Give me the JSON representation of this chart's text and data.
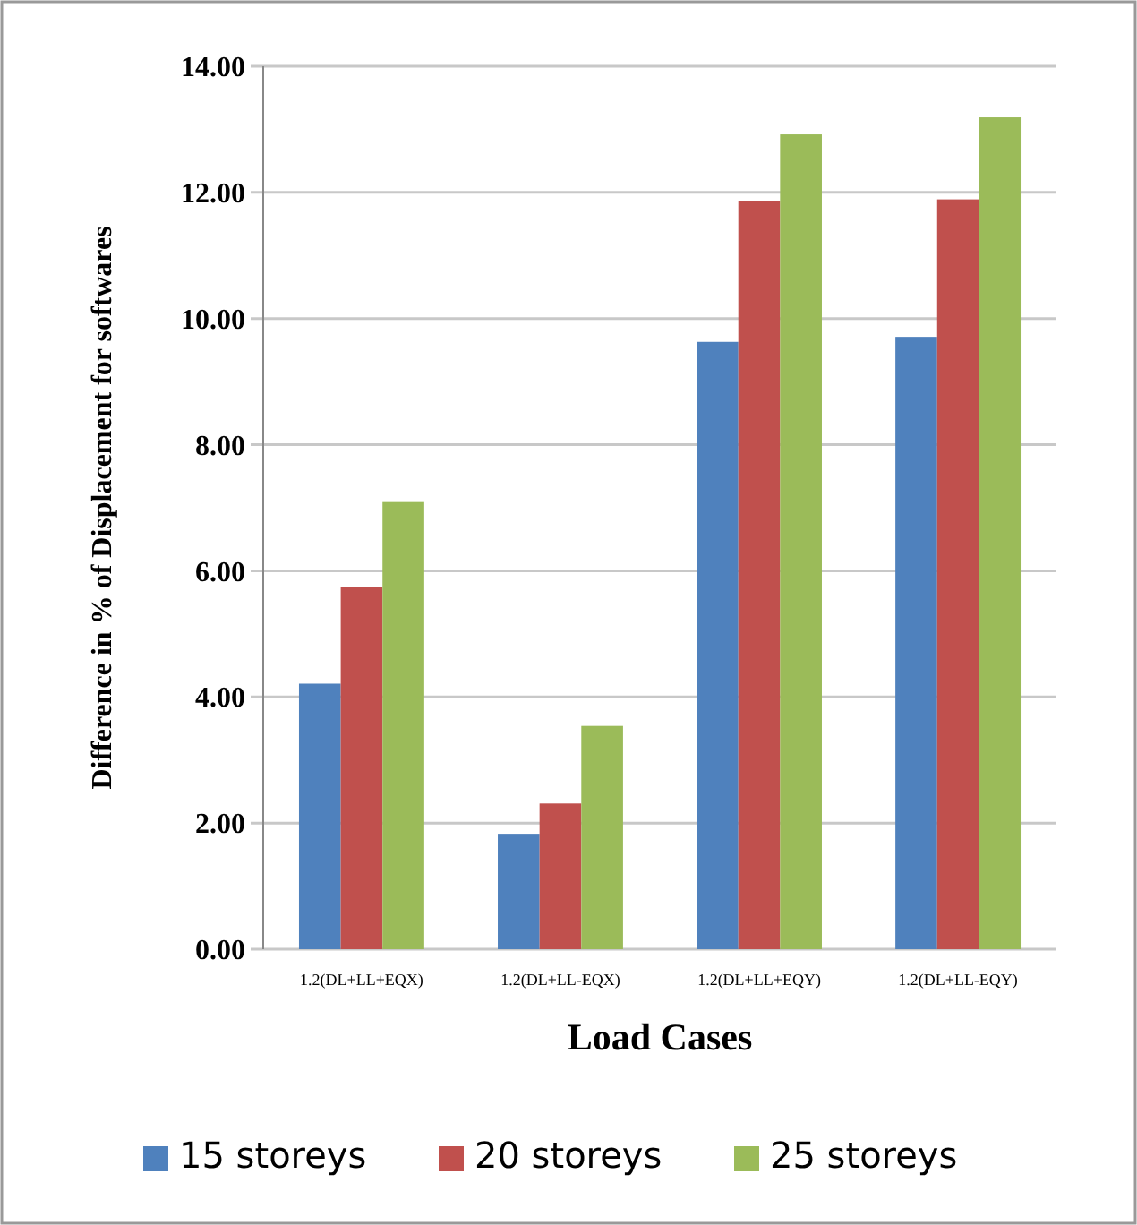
{
  "chart_data": {
    "type": "bar",
    "xlabel": "Load Cases",
    "ylabel": "Difference in % of Displacement for softwares",
    "categories": [
      "1.2(DL+LL+EQX)",
      "1.2(DL+LL-EQX)",
      "1.2(DL+LL+EQY)",
      "1.2(DL+LL-EQY)"
    ],
    "series": [
      {
        "name": "15 storeys",
        "color": "#4f81bd",
        "values": [
          4.21,
          1.83,
          9.63,
          9.71
        ]
      },
      {
        "name": "20 storeys",
        "color": "#c0504d",
        "values": [
          5.74,
          2.31,
          11.87,
          11.89
        ]
      },
      {
        "name": "25 storeys",
        "color": "#9bbb59",
        "values": [
          7.09,
          3.54,
          12.92,
          13.19
        ]
      }
    ],
    "ylim": [
      0,
      14
    ],
    "yticks": [
      {
        "value": 0,
        "label": "0.00"
      },
      {
        "value": 2,
        "label": "2.00"
      },
      {
        "value": 4,
        "label": "4.00"
      },
      {
        "value": 6,
        "label": "6.00"
      },
      {
        "value": 8,
        "label": "8.00"
      },
      {
        "value": 10,
        "label": "10.00"
      },
      {
        "value": 12,
        "label": "12.00"
      },
      {
        "value": 14,
        "label": "14.00"
      }
    ],
    "grid": "y",
    "legend": "bottom"
  }
}
